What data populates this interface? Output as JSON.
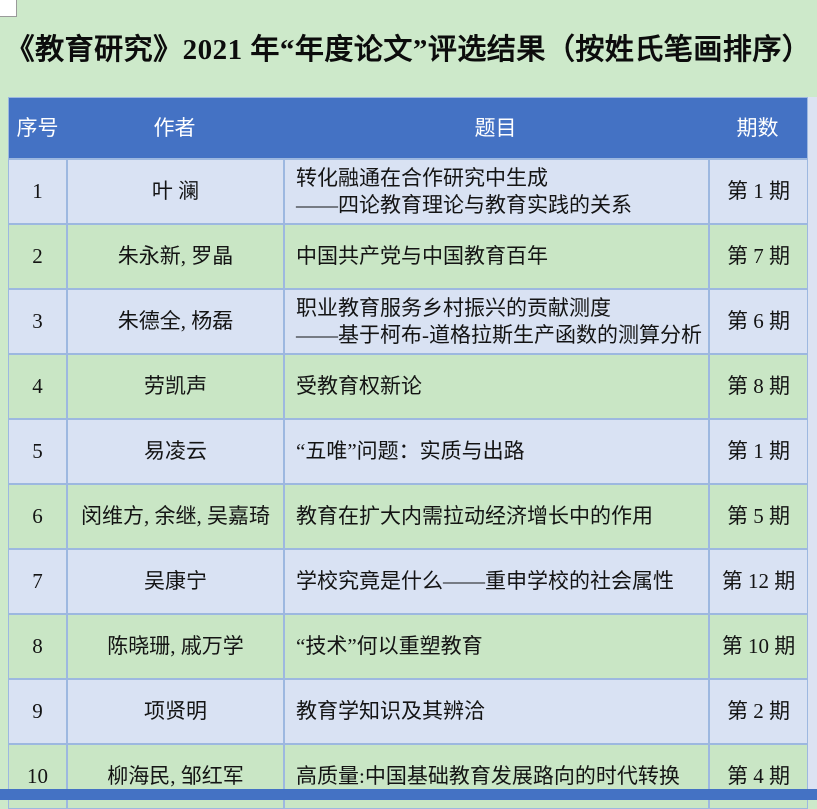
{
  "page": {
    "title": "《教育研究》2021 年“年度论文”评选结果（按姓氏笔画排序）",
    "background_color": "#CDE9CA"
  },
  "colors": {
    "header_bg": "#4472C4",
    "header_text": "#FFFFFF",
    "row_lavender": "#D9E2F3",
    "row_green": "#C9E6C5",
    "grid_line": "#9DB8E0",
    "bottom_strip": "#4472C4",
    "right_margin": "#DCE3F2"
  },
  "table": {
    "header": {
      "columns": [
        "序号",
        "作者",
        "题目",
        "期数"
      ]
    },
    "rows": [
      {
        "no": "1",
        "author": "叶 澜",
        "title": "转化融通在合作研究中生成\n——四论教育理论与教育实践的关系",
        "issue": "第 1 期"
      },
      {
        "no": "2",
        "author": "朱永新, 罗晶",
        "title": "中国共产党与中国教育百年",
        "issue": "第 7 期"
      },
      {
        "no": "3",
        "author": "朱德全, 杨磊",
        "title": "职业教育服务乡村振兴的贡献测度\n——基于柯布-道格拉斯生产函数的测算分析",
        "issue": "第 6 期"
      },
      {
        "no": "4",
        "author": "劳凯声",
        "title": "受教育权新论",
        "issue": "第 8 期"
      },
      {
        "no": "5",
        "author": "易凌云",
        "title": "“五唯”问题：实质与出路",
        "issue": "第 1 期"
      },
      {
        "no": "6",
        "author": "闵维方, 余继, 吴嘉琦",
        "title": "教育在扩大内需拉动经济增长中的作用",
        "issue": "第 5 期"
      },
      {
        "no": "7",
        "author": "吴康宁",
        "title": "学校究竟是什么——重申学校的社会属性",
        "issue": "第 12 期"
      },
      {
        "no": "8",
        "author": "陈晓珊, 戚万学",
        "title": "“技术”何以重塑教育",
        "issue": "第 10 期"
      },
      {
        "no": "9",
        "author": "项贤明",
        "title": "教育学知识及其辨洽",
        "issue": "第 2 期"
      },
      {
        "no": "10",
        "author": "柳海民, 邹红军",
        "title": "高质量:中国基础教育发展路向的时代转换",
        "issue": "第 4 期"
      }
    ]
  }
}
